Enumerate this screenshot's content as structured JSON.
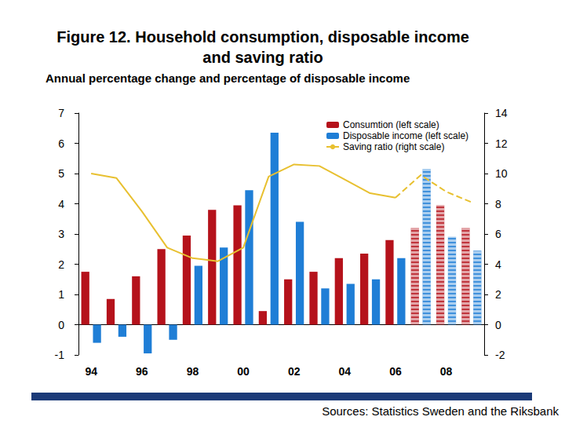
{
  "chart_data": {
    "type": "bar",
    "title": "Figure 12. Household consumption, disposable income and saving ratio",
    "subtitle": "Annual percentage change and percentage of disposable income",
    "source": "Sources: Statistics Sweden and the Riksbank",
    "categories": [
      "94",
      null,
      "96",
      null,
      "98",
      null,
      "00",
      null,
      "02",
      null,
      "04",
      null,
      "06",
      null,
      "08",
      null
    ],
    "forecast": [
      false,
      false,
      false,
      false,
      false,
      false,
      false,
      false,
      false,
      false,
      false,
      false,
      false,
      true,
      true,
      true
    ],
    "series": [
      {
        "name": "Consumtion (left scale)",
        "color": "#b5121b",
        "values": [
          1.75,
          0.85,
          1.6,
          2.5,
          2.95,
          3.8,
          3.95,
          0.45,
          1.5,
          1.75,
          2.2,
          2.35,
          2.8,
          3.2,
          3.95,
          3.2
        ]
      },
      {
        "name": "Disposable income (left scale)",
        "color": "#1f7ed6",
        "values": [
          -0.6,
          -0.4,
          -0.95,
          -0.5,
          1.95,
          2.55,
          4.45,
          6.35,
          3.4,
          1.2,
          1.35,
          1.5,
          2.2,
          5.15,
          2.9,
          2.45
        ]
      },
      {
        "name": "Saving ratio (right scale)",
        "type": "line",
        "axis": "y2",
        "color": "#e8c030",
        "line_style": "solid",
        "values": [
          10,
          9.7,
          7.5,
          5.1,
          4.4,
          4.2,
          5.1,
          9.8,
          10.6,
          10.5,
          9.6,
          8.7,
          8.4,
          9.9,
          8.8,
          8.1
        ]
      }
    ],
    "ylim": [
      -1,
      7
    ],
    "yticks": [
      -1,
      0,
      1,
      2,
      3,
      4,
      5,
      6,
      7
    ],
    "y2lim": [
      -2,
      14
    ],
    "y2ticks": [
      -2,
      0,
      2,
      4,
      6,
      8,
      10,
      12,
      14
    ],
    "grid": false,
    "legend": "upper right"
  }
}
